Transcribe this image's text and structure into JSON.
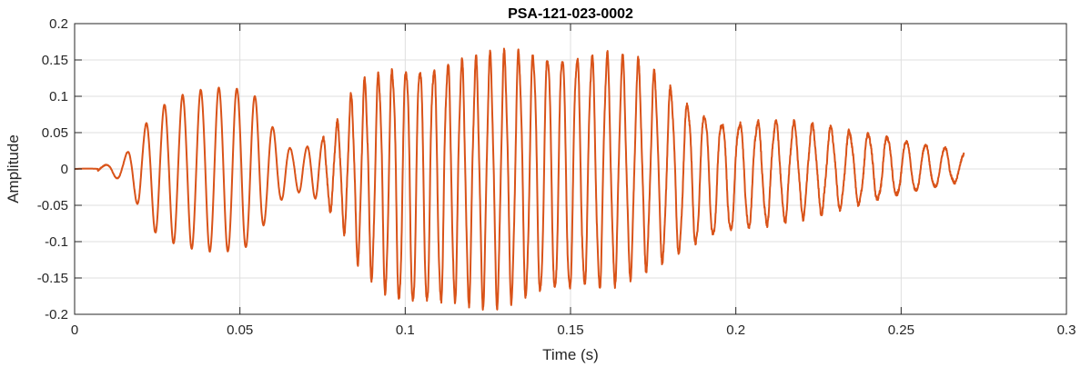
{
  "chart_data": {
    "type": "line",
    "title": "PSA-121-023-0002",
    "xlabel": "Time (s)",
    "ylabel": "Amplitude",
    "xlim": [
      0,
      0.3
    ],
    "ylim": [
      -0.2,
      0.2
    ],
    "grid": true,
    "x_ticks": [
      0,
      0.05,
      0.1,
      0.15,
      0.2,
      0.25,
      0.3
    ],
    "x_tick_labels": [
      "0",
      "0.05",
      "0.1",
      "0.15",
      "0.2",
      "0.25",
      "0.3"
    ],
    "y_ticks": [
      -0.2,
      -0.15,
      -0.1,
      -0.05,
      0,
      0.05,
      0.1,
      0.15,
      0.2
    ],
    "y_tick_labels": [
      "-0.2",
      "-0.15",
      "-0.1",
      "-0.05",
      "0",
      "0.05",
      "0.1",
      "0.15",
      "0.2"
    ],
    "series": [
      {
        "color": "#D95319",
        "x_end": 0.269,
        "envelope": {
          "t": [
            0,
            0.005,
            0.01,
            0.014,
            0.018,
            0.022,
            0.026,
            0.032,
            0.038,
            0.044,
            0.05,
            0.055,
            0.058,
            0.062,
            0.066,
            0.07,
            0.075,
            0.08,
            0.085,
            0.09,
            0.095,
            0.1,
            0.105,
            0.11,
            0.115,
            0.12,
            0.125,
            0.13,
            0.135,
            0.14,
            0.145,
            0.15,
            0.155,
            0.16,
            0.165,
            0.17,
            0.175,
            0.18,
            0.185,
            0.19,
            0.195,
            0.2,
            0.205,
            0.21,
            0.215,
            0.22,
            0.225,
            0.23,
            0.235,
            0.24,
            0.245,
            0.25,
            0.255,
            0.26,
            0.265,
            0.269
          ],
          "pos": [
            0.002,
            0.002,
            0.006,
            0.012,
            0.035,
            0.065,
            0.085,
            0.1,
            0.108,
            0.112,
            0.111,
            0.1,
            0.07,
            0.045,
            0.025,
            0.03,
            0.04,
            0.065,
            0.11,
            0.125,
            0.135,
            0.14,
            0.14,
            0.14,
            0.145,
            0.145,
            0.15,
            0.155,
            0.158,
            0.158,
            0.157,
            0.155,
            0.155,
            0.155,
            0.15,
            0.145,
            0.13,
            0.11,
            0.09,
            0.075,
            0.065,
            0.063,
            0.065,
            0.065,
            0.065,
            0.06,
            0.058,
            0.055,
            0.05,
            0.048,
            0.045,
            0.04,
            0.035,
            0.032,
            0.028,
            0.02
          ],
          "neg": [
            0.003,
            0.003,
            0.008,
            0.015,
            0.04,
            0.075,
            0.095,
            0.105,
            0.112,
            0.114,
            0.113,
            0.1,
            0.07,
            0.045,
            0.03,
            0.035,
            0.045,
            0.07,
            0.12,
            0.15,
            0.175,
            0.19,
            0.19,
            0.185,
            0.18,
            0.18,
            0.183,
            0.18,
            0.175,
            0.172,
            0.17,
            0.17,
            0.16,
            0.16,
            0.15,
            0.14,
            0.13,
            0.12,
            0.11,
            0.1,
            0.09,
            0.085,
            0.08,
            0.075,
            0.07,
            0.065,
            0.06,
            0.055,
            0.05,
            0.045,
            0.04,
            0.035,
            0.03,
            0.025,
            0.02,
            0.015
          ]
        },
        "frequency_hz": {
          "t": [
            0,
            0.015,
            0.02,
            0.06,
            0.07,
            0.08,
            0.1,
            0.15,
            0.18,
            0.2,
            0.24,
            0.269
          ],
          "f": [
            120,
            160,
            180,
            185,
            200,
            240,
            240,
            225,
            200,
            185,
            175,
            170
          ]
        }
      }
    ]
  }
}
